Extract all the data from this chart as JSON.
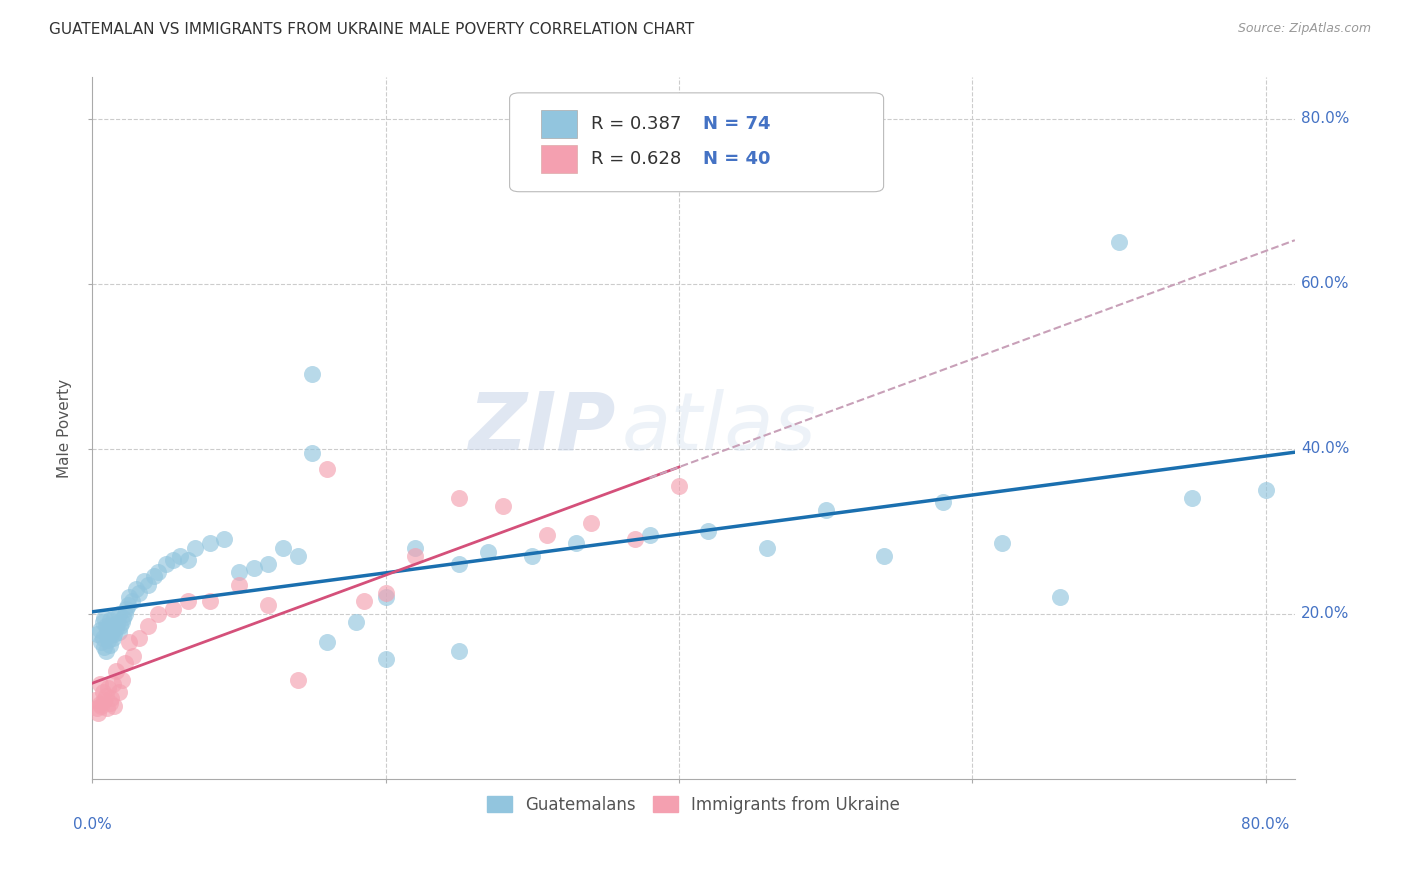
{
  "title": "GUATEMALAN VS IMMIGRANTS FROM UKRAINE MALE POVERTY CORRELATION CHART",
  "source": "Source: ZipAtlas.com",
  "ylabel": "Male Poverty",
  "xlim": [
    0.0,
    0.82
  ],
  "ylim": [
    0.0,
    0.85
  ],
  "legend_r1": "R = 0.387",
  "legend_n1": "N = 74",
  "legend_r2": "R = 0.628",
  "legend_n2": "N = 40",
  "color_blue": "#92c5de",
  "color_pink": "#f4a0b0",
  "color_blue_line": "#1a6faf",
  "color_pink_line": "#d4507a",
  "color_dashed_line": "#c8a0b8",
  "watermark_zip": "ZIP",
  "watermark_atlas": "atlas",
  "background_color": "#ffffff",
  "grid_color": "#cccccc",
  "guatemalan_x": [
    0.003,
    0.005,
    0.006,
    0.007,
    0.007,
    0.008,
    0.008,
    0.009,
    0.009,
    0.01,
    0.01,
    0.011,
    0.011,
    0.012,
    0.012,
    0.013,
    0.013,
    0.014,
    0.014,
    0.015,
    0.015,
    0.016,
    0.017,
    0.018,
    0.018,
    0.019,
    0.02,
    0.021,
    0.022,
    0.023,
    0.024,
    0.025,
    0.027,
    0.03,
    0.032,
    0.035,
    0.038,
    0.042,
    0.045,
    0.05,
    0.055,
    0.06,
    0.065,
    0.07,
    0.08,
    0.09,
    0.1,
    0.11,
    0.12,
    0.13,
    0.14,
    0.15,
    0.16,
    0.18,
    0.2,
    0.22,
    0.25,
    0.27,
    0.3,
    0.33,
    0.38,
    0.42,
    0.46,
    0.5,
    0.54,
    0.58,
    0.62,
    0.66,
    0.7,
    0.75,
    0.8,
    0.15,
    0.2,
    0.25
  ],
  "guatemalan_y": [
    0.175,
    0.18,
    0.165,
    0.17,
    0.19,
    0.16,
    0.195,
    0.155,
    0.185,
    0.172,
    0.183,
    0.168,
    0.177,
    0.162,
    0.192,
    0.175,
    0.185,
    0.17,
    0.18,
    0.175,
    0.195,
    0.182,
    0.188,
    0.178,
    0.2,
    0.185,
    0.19,
    0.195,
    0.2,
    0.205,
    0.21,
    0.22,
    0.215,
    0.23,
    0.225,
    0.24,
    0.235,
    0.245,
    0.25,
    0.26,
    0.265,
    0.27,
    0.265,
    0.28,
    0.285,
    0.29,
    0.25,
    0.255,
    0.26,
    0.28,
    0.27,
    0.49,
    0.165,
    0.19,
    0.22,
    0.28,
    0.26,
    0.275,
    0.27,
    0.285,
    0.295,
    0.3,
    0.28,
    0.325,
    0.27,
    0.335,
    0.285,
    0.22,
    0.65,
    0.34,
    0.35,
    0.395,
    0.145,
    0.155
  ],
  "ukraine_x": [
    0.002,
    0.003,
    0.004,
    0.005,
    0.005,
    0.006,
    0.007,
    0.008,
    0.009,
    0.01,
    0.011,
    0.012,
    0.013,
    0.014,
    0.015,
    0.016,
    0.018,
    0.02,
    0.022,
    0.025,
    0.028,
    0.032,
    0.038,
    0.045,
    0.055,
    0.065,
    0.08,
    0.1,
    0.12,
    0.14,
    0.16,
    0.185,
    0.2,
    0.22,
    0.25,
    0.28,
    0.31,
    0.34,
    0.37,
    0.4
  ],
  "ukraine_y": [
    0.095,
    0.085,
    0.08,
    0.09,
    0.115,
    0.088,
    0.105,
    0.095,
    0.1,
    0.085,
    0.11,
    0.092,
    0.098,
    0.115,
    0.088,
    0.13,
    0.105,
    0.12,
    0.14,
    0.165,
    0.148,
    0.17,
    0.185,
    0.2,
    0.205,
    0.215,
    0.215,
    0.235,
    0.21,
    0.12,
    0.375,
    0.215,
    0.225,
    0.27,
    0.34,
    0.33,
    0.295,
    0.31,
    0.29,
    0.355
  ],
  "title_fontsize": 11,
  "source_fontsize": 9,
  "axis_label_fontsize": 11,
  "tick_label_fontsize": 11,
  "legend_fontsize": 13
}
